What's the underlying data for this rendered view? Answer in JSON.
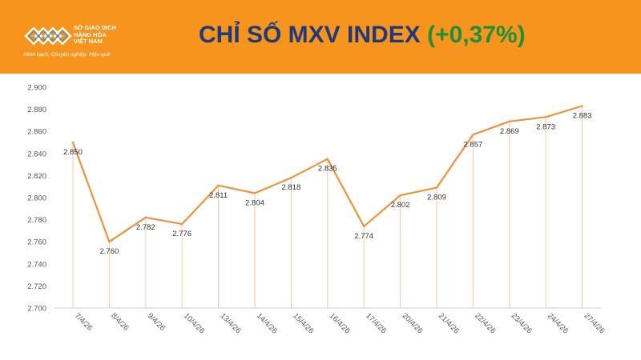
{
  "header": {
    "logo_lines": [
      "SỞ GIAO DỊCH",
      "HÀNG HÓA",
      "VIỆT NAM"
    ],
    "logo_slogan": "Minh bạch. Chuyên nghiệp. Hiệu quả",
    "title_main": "CHỈ SỐ MXV INDEX",
    "title_change": "(+0,37%)"
  },
  "colors": {
    "header_bg": "#f7941d",
    "title_main": "#1f3a7a",
    "title_change": "#1f8f3a",
    "line": "#f0923a",
    "drop_line": "#f7c9a0",
    "axis": "#cfcfcf"
  },
  "chart_data": {
    "type": "line",
    "title": "CHỈ SỐ MXV INDEX (+0,37%)",
    "xlabel": "",
    "ylabel": "",
    "categories": [
      "7/4/26",
      "8/4/26",
      "9/4/26",
      "10/4/26",
      "13/4/26",
      "14/4/26",
      "15/4/26",
      "16/4/26",
      "17/4/26",
      "20/4/26",
      "21/4/26",
      "22/4/26",
      "23/4/26",
      "24/4/26",
      "27/4/26"
    ],
    "values": [
      2850,
      2760,
      2782,
      2776,
      2811,
      2804,
      2818,
      2835,
      2774,
      2802,
      2809,
      2857,
      2869,
      2873,
      2883
    ],
    "value_labels": [
      "2.850",
      "2.760",
      "2.782",
      "2.776",
      "2.811",
      "2.804",
      "2.818",
      "2.835",
      "2.774",
      "2.802",
      "2.809",
      "2.857",
      "2.869",
      "2.873",
      "2.883"
    ],
    "ylim": [
      2700,
      2900
    ],
    "yticks": [
      2700,
      2720,
      2740,
      2760,
      2780,
      2800,
      2820,
      2840,
      2860,
      2880,
      2900
    ],
    "ytick_labels": [
      "2.700",
      "2.720",
      "2.740",
      "2.760",
      "2.780",
      "2.800",
      "2.820",
      "2.840",
      "2.860",
      "2.880",
      "2.900"
    ],
    "grid": false,
    "legend": "none"
  }
}
